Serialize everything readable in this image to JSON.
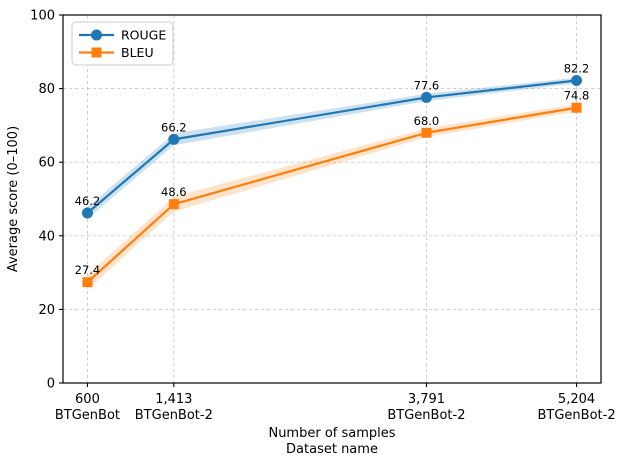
{
  "chart_data": {
    "type": "line",
    "title": "",
    "xlabel_lines": [
      "Number of samples",
      "Dataset name"
    ],
    "ylabel": "Average score (0–100)",
    "x": [
      600,
      1413,
      3791,
      5204
    ],
    "x_tick_labels": [
      [
        "600",
        "BTGenBot"
      ],
      [
        "1,413",
        "BTGenBot-2"
      ],
      [
        "3,791",
        "BTGenBot-2"
      ],
      [
        "5,204",
        "BTGenBot-2"
      ]
    ],
    "ylim": [
      0,
      100
    ],
    "yticks": [
      0,
      20,
      40,
      60,
      80,
      100
    ],
    "grid": true,
    "grid_style": "dashed",
    "legend_position": "upper-left",
    "legend_entries": [
      "ROUGE",
      "BLEU"
    ],
    "series": [
      {
        "name": "ROUGE",
        "color": "#1f77b4",
        "marker": "circle",
        "values": [
          46.2,
          66.2,
          77.6,
          82.2
        ],
        "data_labels": [
          "46.2",
          "66.2",
          "77.6",
          "82.2"
        ],
        "band_halfwidth": [
          1.6,
          1.6,
          1.0,
          0.8
        ]
      },
      {
        "name": "BLEU",
        "color": "#ff7f0e",
        "marker": "square",
        "values": [
          27.4,
          48.6,
          68.0,
          74.8
        ],
        "data_labels": [
          "27.4",
          "48.6",
          "68.0",
          "74.8"
        ],
        "band_halfwidth": [
          2.0,
          2.0,
          1.2,
          1.0
        ]
      }
    ],
    "colors": {
      "rouge": "#1f77b4",
      "bleu": "#ff7f0e",
      "grid": "#c9c9c9",
      "spine": "#000000",
      "text": "#000000",
      "legend_border": "#cccccc",
      "background": "#ffffff"
    }
  }
}
